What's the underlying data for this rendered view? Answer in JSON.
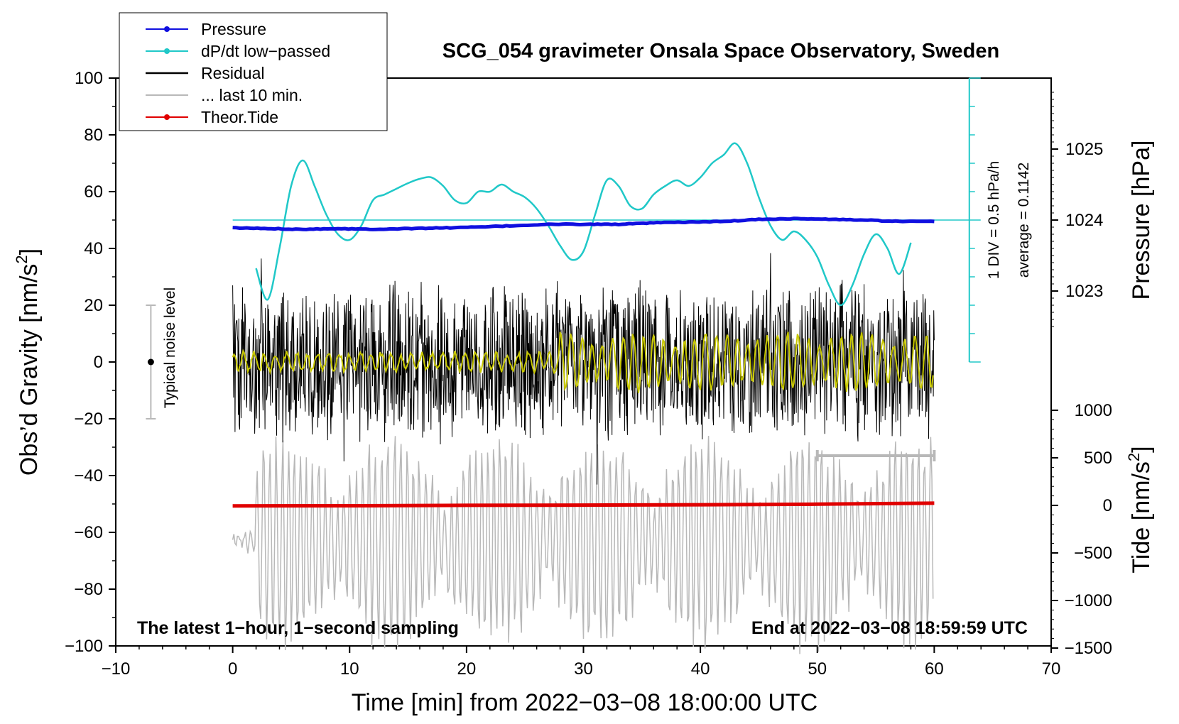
{
  "chart_data": {
    "type": "line",
    "title": "SCG_054 gravimeter Onsala Space Observatory, Sweden",
    "xlabel": "Time [min] from 2022−03−08 18:00:00 UTC",
    "ylabel_left": "Obs’d Gravity [nm/s",
    "ylabel_left_sup": "2",
    "ylabel_left_close": "]",
    "ylabel_right_pressure": "Pressure [hPa]",
    "ylabel_right_tide": "Tide [nm/s",
    "ylabel_right_tide_sup": "2",
    "ylabel_right_tide_close": "]",
    "xlim": [
      -10,
      70
    ],
    "ylim": [
      -100,
      100
    ],
    "xticks": [
      "−10",
      "0",
      "10",
      "20",
      "30",
      "40",
      "50",
      "60",
      "70"
    ],
    "xtick_values": [
      -10,
      0,
      10,
      20,
      30,
      40,
      50,
      60,
      70
    ],
    "yticks": [
      "100",
      "80",
      "60",
      "40",
      "20",
      "0",
      "−20",
      "−40",
      "−60",
      "−80",
      "−100"
    ],
    "ytick_values": [
      100,
      80,
      60,
      40,
      20,
      0,
      -20,
      -40,
      -60,
      -80,
      -100
    ],
    "pressure_ticks": [
      "1025",
      "1024",
      "1023"
    ],
    "pressure_tick_values": [
      1025,
      1024,
      1023
    ],
    "tide_ticks": [
      "1000",
      "500",
      "0",
      "−500",
      "−1000",
      "−1500"
    ],
    "tide_tick_values": [
      1000,
      500,
      0,
      -500,
      -1000,
      -1500
    ],
    "legend": [
      {
        "label": "Pressure",
        "color": "#1010e0",
        "marker": true
      },
      {
        "label": "dP/dt low−passed",
        "color": "#20c8c8",
        "marker": true
      },
      {
        "label": "Residual",
        "color": "#000000",
        "marker": false
      },
      {
        "label": "... last 10 min.",
        "color": "#b8b8b8",
        "marker": false
      },
      {
        "label": "Theor.Tide",
        "color": "#e00000",
        "marker": true
      }
    ],
    "annotations": {
      "bottom_left": "The latest 1−hour, 1−second sampling",
      "bottom_right": "End at 2022−03−08 18:59:59 UTC",
      "noise_label": "Typical noise level",
      "dpdt_scale": "1 DIV = 0.5 hPa/h",
      "dpdt_average": "average = 0.1142"
    },
    "colors": {
      "pressure": "#1010e0",
      "dpdt": "#20c8c8",
      "residual": "#000000",
      "residual_smooth": "#c8c800",
      "last10": "#b8b8b8",
      "tide": "#e00000"
    },
    "series": [
      {
        "name": "Pressure",
        "axis": "pressure_hPa",
        "x": [
          0,
          3,
          6,
          9,
          12,
          15,
          18,
          21,
          24,
          27,
          30,
          33,
          36,
          39,
          42,
          45,
          48,
          51,
          54,
          57,
          60
        ],
        "values": [
          1023.89,
          1023.88,
          1023.87,
          1023.88,
          1023.87,
          1023.88,
          1023.89,
          1023.9,
          1023.92,
          1023.94,
          1023.94,
          1023.94,
          1023.96,
          1023.97,
          1023.98,
          1024.01,
          1024.02,
          1024.01,
          1024.0,
          1023.98,
          1023.98
        ]
      },
      {
        "name": "dP/dt low−passed",
        "axis": "gravity_scaled",
        "x": [
          2,
          3,
          4,
          5,
          6,
          7,
          8,
          9,
          10,
          11,
          12,
          13,
          14,
          15,
          16,
          17,
          18,
          19,
          20,
          21,
          22,
          23,
          24,
          25,
          26,
          27,
          28,
          29,
          30,
          31,
          32,
          33,
          34,
          35,
          36,
          37,
          38,
          39,
          40,
          41,
          42,
          43,
          44,
          45,
          46,
          47,
          48,
          49,
          50,
          51,
          52,
          53,
          54,
          55,
          56,
          57,
          58
        ],
        "values": [
          33,
          22,
          40,
          62,
          71,
          62,
          52,
          45,
          43,
          48,
          57,
          59,
          61,
          63,
          64.5,
          65,
          62,
          57,
          56,
          60,
          60,
          62.5,
          60,
          58,
          54,
          48,
          41,
          36,
          39,
          52,
          64,
          62,
          55,
          54,
          59,
          62,
          64,
          62,
          65,
          70,
          73,
          77,
          70,
          58,
          48,
          43,
          46,
          43,
          37,
          27,
          20,
          27,
          38,
          45,
          40,
          31,
          42
        ],
        "average_line": 50
      },
      {
        "name": "Residual",
        "axis": "gravity",
        "x_range": [
          0,
          60
        ],
        "amplitude": 35
      },
      {
        "name": "... last 10 min.",
        "axis": "gravity",
        "x_range": [
          0,
          60
        ]
      },
      {
        "name": "Theor.Tide",
        "axis": "tide_nm_s2",
        "x": [
          0,
          10,
          20,
          30,
          40,
          50,
          60
        ],
        "values": [
          -5,
          -4,
          1,
          3,
          7,
          13,
          23
        ]
      }
    ],
    "last10_bar": {
      "x_start": 50,
      "x_end": 60,
      "y": -33
    },
    "noise_bar": {
      "x": -7,
      "y_low": -20,
      "y_high": 20,
      "center": 0
    }
  }
}
